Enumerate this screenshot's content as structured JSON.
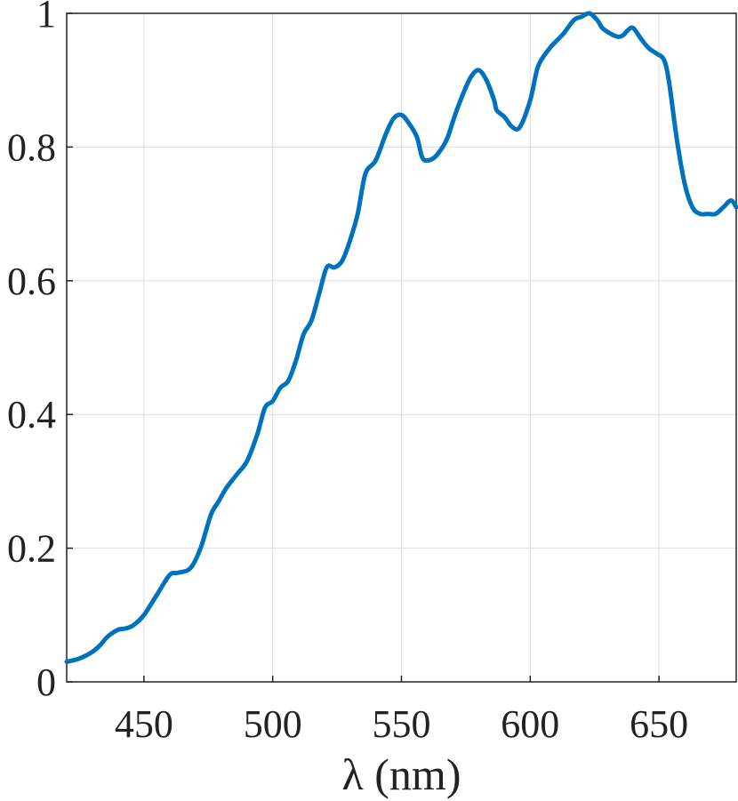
{
  "chart_data": {
    "type": "line",
    "title": "",
    "xlabel": "λ (nm)",
    "ylabel": "",
    "xlim": [
      420,
      680
    ],
    "ylim": [
      0,
      1
    ],
    "xticks": [
      450,
      500,
      550,
      600,
      650
    ],
    "yticks": [
      0,
      0.2,
      0.4,
      0.6,
      0.8,
      1
    ],
    "xtick_labels": [
      "450",
      "500",
      "550",
      "600",
      "650"
    ],
    "ytick_labels": [
      "0",
      "0.2",
      "0.4",
      "0.6",
      "0.8",
      "1"
    ],
    "grid": true,
    "series": [
      {
        "color": "#0072BD",
        "x": [
          420,
          425,
          430,
          433,
          436,
          440,
          443,
          446,
          450,
          455,
          460,
          463,
          468,
          472,
          476,
          479,
          482,
          486,
          490,
          494,
          497,
          500,
          503,
          506,
          509,
          512,
          515,
          518,
          521,
          524,
          527,
          530,
          533,
          536,
          540,
          544,
          547,
          550,
          553,
          556,
          558,
          560,
          563,
          566,
          568,
          571,
          574,
          577,
          580,
          583,
          586,
          587,
          590,
          593,
          596,
          600,
          603,
          607,
          610,
          613,
          617,
          620,
          623,
          626,
          628,
          631,
          634,
          636,
          638,
          640,
          643,
          646,
          649,
          652,
          654,
          657,
          660,
          663,
          666,
          669,
          672,
          675,
          678,
          680
        ],
        "y": [
          0.03,
          0.035,
          0.045,
          0.055,
          0.068,
          0.078,
          0.08,
          0.085,
          0.1,
          0.13,
          0.16,
          0.163,
          0.17,
          0.2,
          0.25,
          0.27,
          0.29,
          0.31,
          0.33,
          0.37,
          0.41,
          0.42,
          0.44,
          0.45,
          0.48,
          0.52,
          0.54,
          0.58,
          0.62,
          0.62,
          0.63,
          0.66,
          0.7,
          0.76,
          0.78,
          0.82,
          0.843,
          0.848,
          0.835,
          0.815,
          0.785,
          0.78,
          0.785,
          0.8,
          0.815,
          0.85,
          0.88,
          0.905,
          0.915,
          0.9,
          0.87,
          0.855,
          0.845,
          0.83,
          0.83,
          0.87,
          0.92,
          0.945,
          0.958,
          0.97,
          0.99,
          0.995,
          1.0,
          0.99,
          0.978,
          0.97,
          0.965,
          0.967,
          0.975,
          0.978,
          0.962,
          0.948,
          0.94,
          0.93,
          0.895,
          0.81,
          0.745,
          0.71,
          0.7,
          0.7,
          0.7,
          0.71,
          0.72,
          0.71
        ]
      }
    ]
  }
}
